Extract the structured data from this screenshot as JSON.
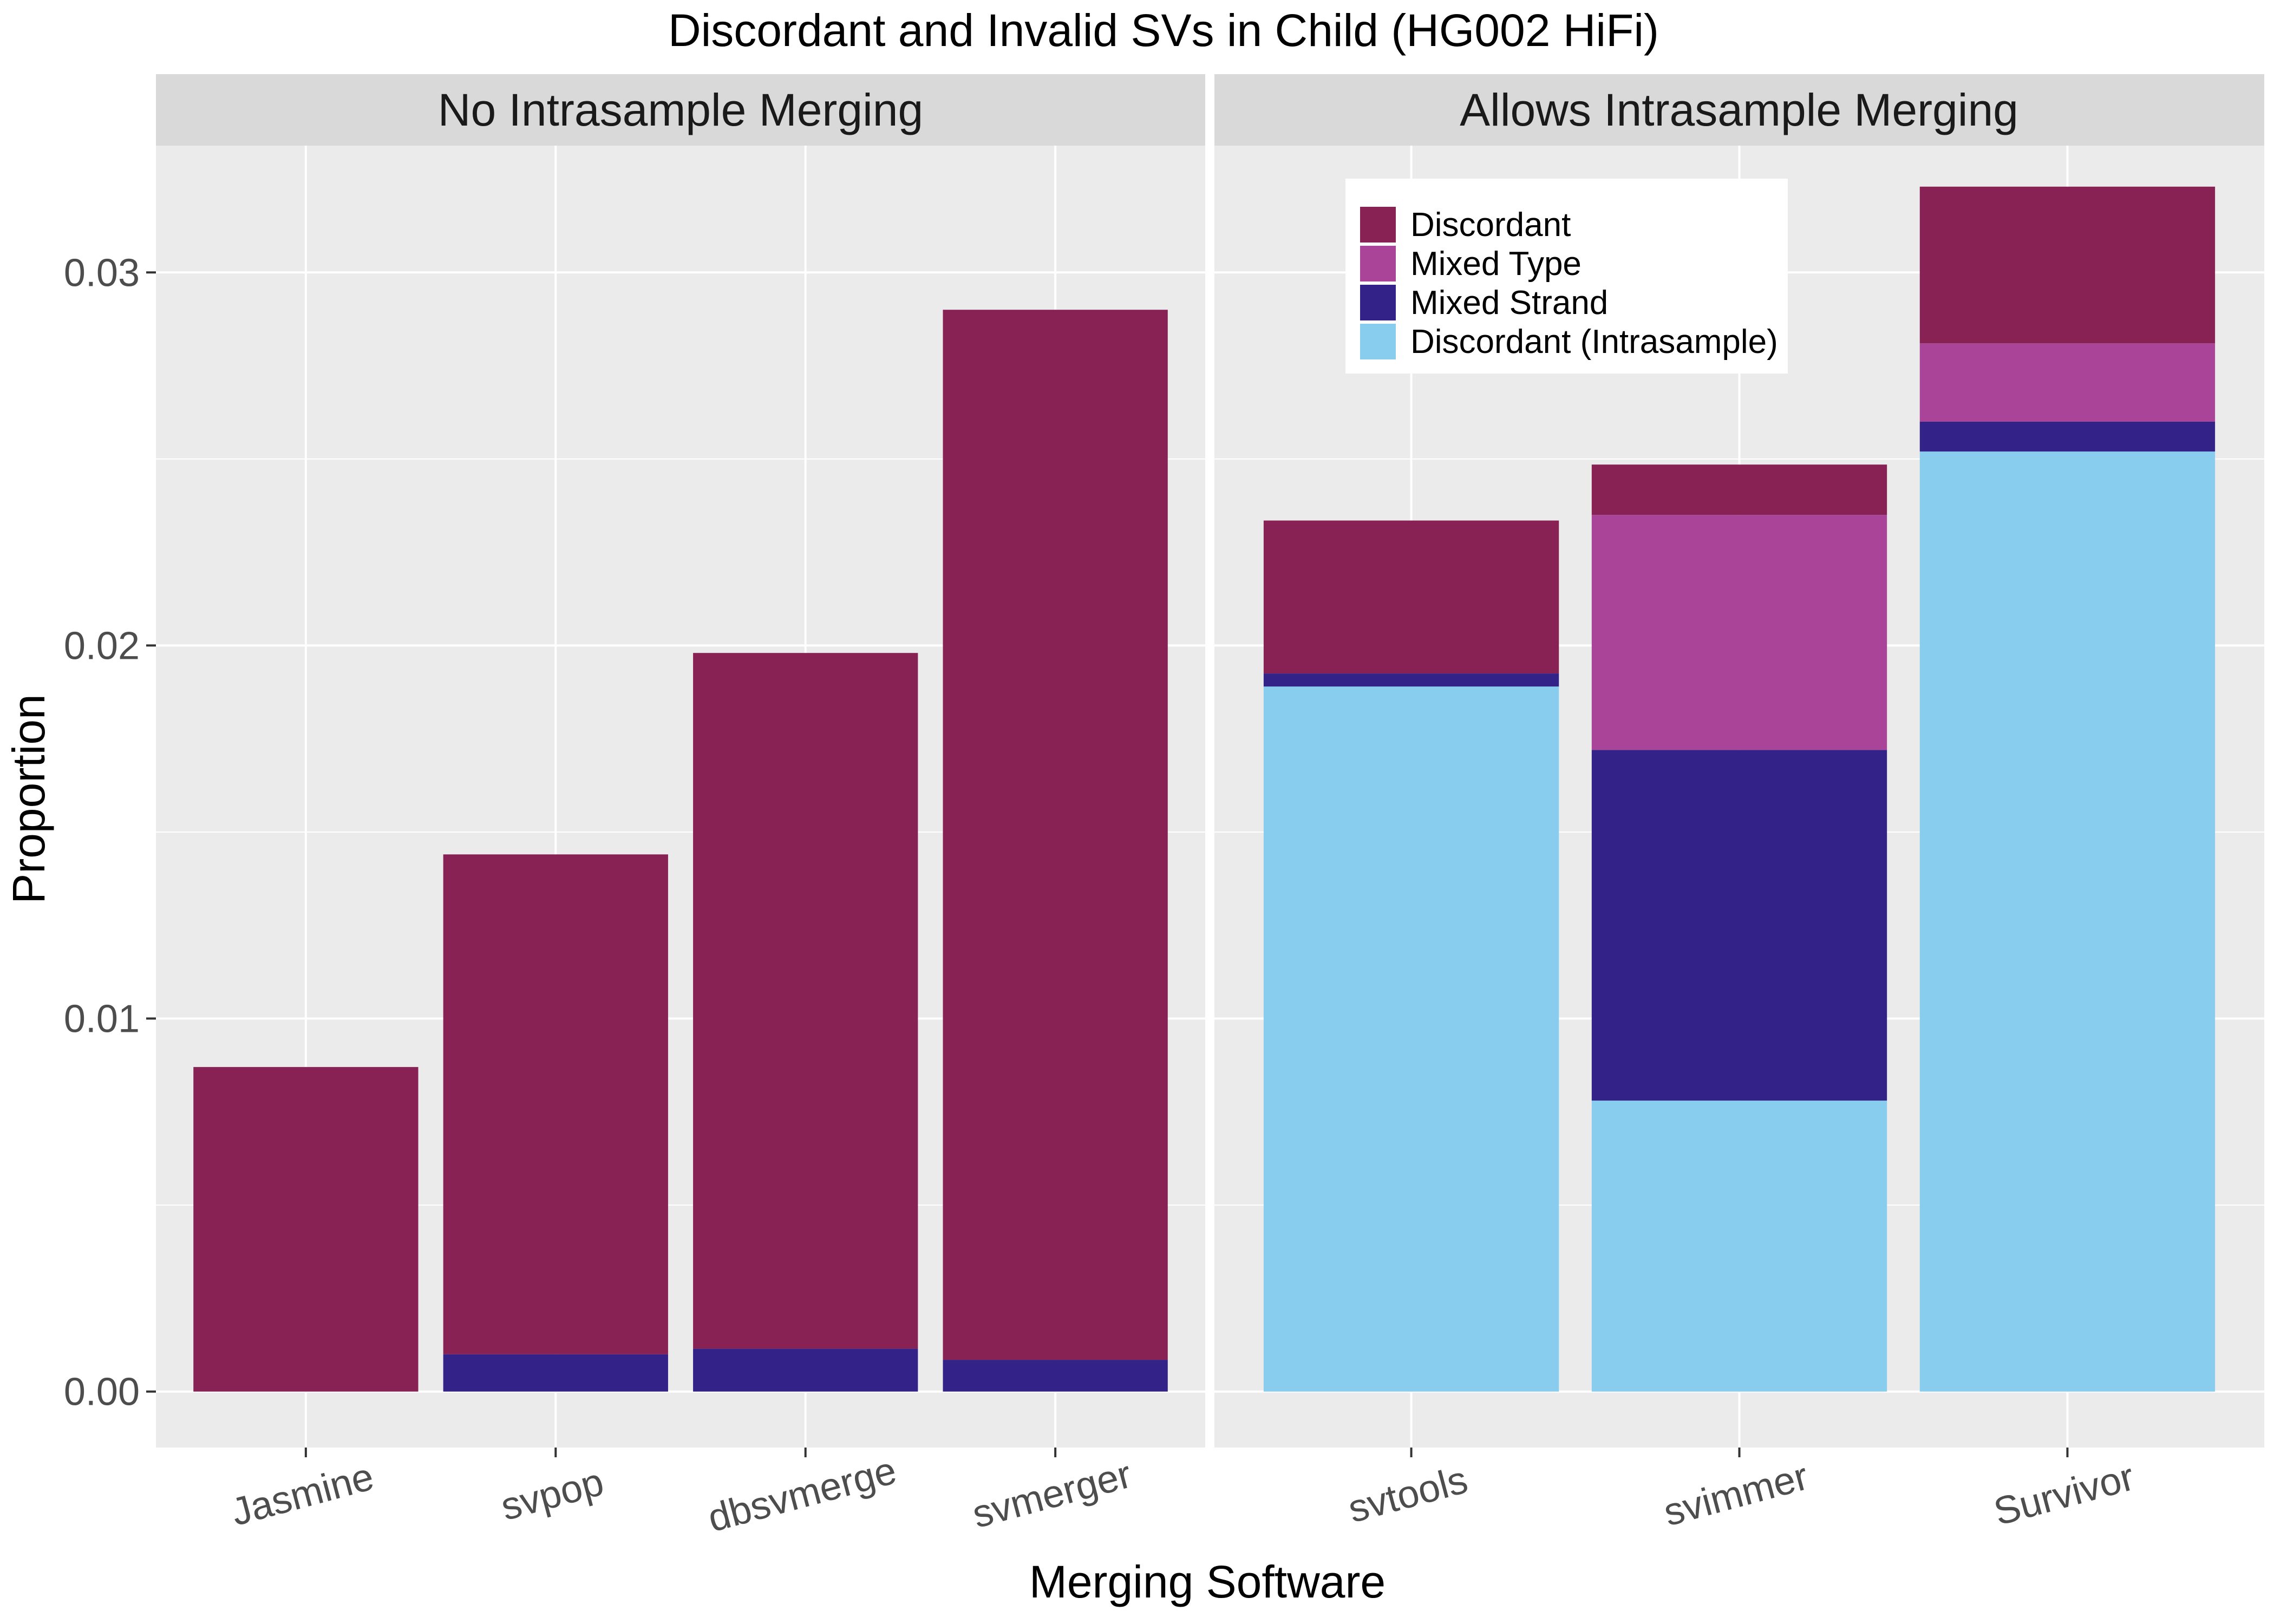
{
  "chart_data": {
    "type": "bar",
    "stacked": true,
    "title": "Discordant and Invalid SVs in Child (HG002 HiFi)",
    "xlabel": "Merging Software",
    "ylabel": "Proportion",
    "ylim": [
      -0.0015,
      0.0334
    ],
    "yticks": [
      0.0,
      0.01,
      0.02,
      0.03
    ],
    "ytick_labels": [
      "0.00",
      "0.01",
      "0.02",
      "0.03"
    ],
    "grid": true,
    "legend": {
      "position": "top-left of right panel",
      "entries": [
        "Discordant",
        "Mixed Type",
        "Mixed Strand",
        "Discordant (Intrasample)"
      ]
    },
    "stack_order_bottom_to_top": [
      "Discordant (Intrasample)",
      "Mixed Strand",
      "Mixed Type",
      "Discordant"
    ],
    "colors": {
      "Discordant": "#882255",
      "Mixed Type": "#AA4499",
      "Mixed Strand": "#332288",
      "Discordant (Intrasample)": "#88CCEE",
      "panel_background": "#EBEBEB",
      "strip_background": "#D9D9D9",
      "grid": "#FFFFFF"
    },
    "panels": [
      {
        "strip_label": "No Intrasample Merging",
        "categories": [
          "Jasmine",
          "svpop",
          "dbsvmerge",
          "svmerger"
        ],
        "series": [
          {
            "name": "Discordant (Intrasample)",
            "values": [
              0,
              0,
              0,
              0
            ]
          },
          {
            "name": "Mixed Strand",
            "values": [
              0,
              0.001,
              0.00115,
              0.00085
            ]
          },
          {
            "name": "Mixed Type",
            "values": [
              0,
              0,
              0,
              0
            ]
          },
          {
            "name": "Discordant",
            "values": [
              0.0087,
              0.0134,
              0.01865,
              0.02815
            ]
          }
        ]
      },
      {
        "strip_label": "Allows Intrasample Merging",
        "categories": [
          "svtools",
          "svimmer",
          "Survivor"
        ],
        "series": [
          {
            "name": "Discordant (Intrasample)",
            "values": [
              0.0189,
              0.0078,
              0.0252
            ]
          },
          {
            "name": "Mixed Strand",
            "values": [
              0.00035,
              0.0094,
              0.0008
            ]
          },
          {
            "name": "Mixed Type",
            "values": [
              0,
              0.0063,
              0.0021
            ]
          },
          {
            "name": "Discordant",
            "values": [
              0.0041,
              0.00135,
              0.0042
            ]
          }
        ]
      }
    ]
  }
}
